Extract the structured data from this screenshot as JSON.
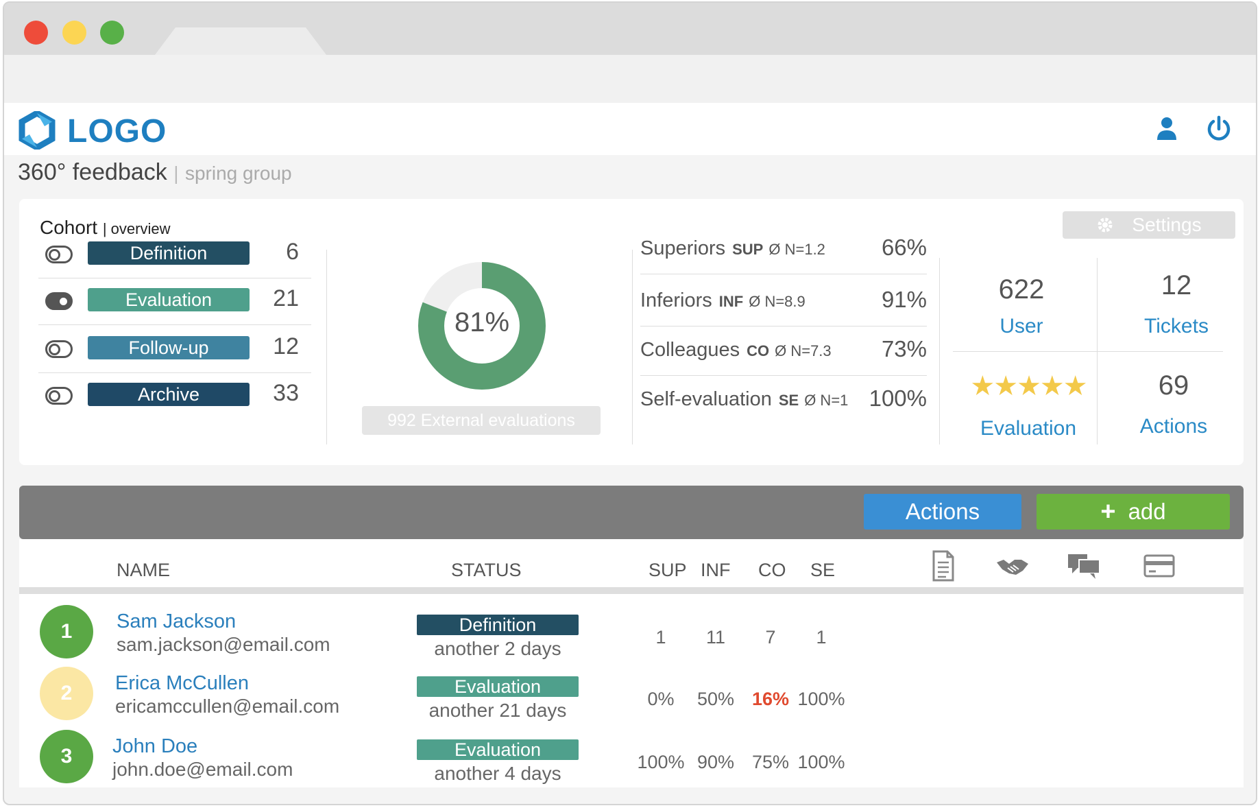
{
  "brand": {
    "logo_text": "LOGO",
    "color": "#1e7fc0"
  },
  "page": {
    "title": "360° feedback",
    "separator": "|",
    "group": "spring group"
  },
  "cohort": {
    "title": "Cohort",
    "subtitle": "overview",
    "settings_label": "Settings",
    "stages": [
      {
        "label": "Definition",
        "count": "6",
        "toggle": "off",
        "color": "#234f63"
      },
      {
        "label": "Evaluation",
        "count": "21",
        "toggle": "on",
        "color": "#4fa08c"
      },
      {
        "label": "Follow-up",
        "count": "12",
        "toggle": "off",
        "color": "#3f83a0"
      },
      {
        "label": "Archive",
        "count": "33",
        "toggle": "off",
        "color": "#1f4966"
      }
    ],
    "progress": {
      "label": "81%",
      "value": 0.81,
      "color": "#5a9e72"
    },
    "external_evaluations": "992 External evaluations",
    "groups": [
      {
        "name": "Superiors",
        "abbr": "SUP",
        "meta": "Ø  N=1.2",
        "pct": "66%"
      },
      {
        "name": "Inferiors",
        "abbr": "INF",
        "meta": "Ø  N=8.9",
        "pct": "91%"
      },
      {
        "name": "Colleagues",
        "abbr": "CO",
        "meta": "Ø  N=7.3",
        "pct": "73%"
      },
      {
        "name": "Self-evaluation",
        "abbr": "SE",
        "meta": "Ø  N=1",
        "pct": "100%"
      }
    ],
    "stats": {
      "user": {
        "value": "622",
        "label": "User"
      },
      "tickets": {
        "value": "12",
        "label": "Tickets"
      },
      "evaluation": {
        "stars": "★★★★★",
        "rating": 5,
        "label": "Evaluation"
      },
      "actions": {
        "value": "69",
        "label": "Actions"
      }
    }
  },
  "toolbar": {
    "actions_label": "Actions",
    "add_label": "add",
    "add_icon": "plus-icon"
  },
  "table": {
    "headers": {
      "name": "NAME",
      "status": "STATUS",
      "sup": "SUP",
      "inf": "INF",
      "co": "CO",
      "se": "SE"
    },
    "header_icons": [
      "document-icon",
      "handshake-icon",
      "chat-icon",
      "card-icon"
    ],
    "rows": [
      {
        "num": "1",
        "avatar_color": "#5aa845",
        "name": "Sam Jackson",
        "email": "sam.jackson@email.com",
        "status": "Definition",
        "status_color": "#234f63",
        "note": "another 2 days",
        "sup": "1",
        "inf": "11",
        "co": "7",
        "se": "1"
      },
      {
        "num": "2",
        "avatar_color": "#fbe7a4",
        "name": "Erica McCullen",
        "email": "ericamccullen@email.com",
        "status": "Evaluation",
        "status_color": "#4fa08c",
        "note": "another 21 days",
        "sup": "0%",
        "inf": "50%",
        "co": "16%",
        "se": "100%"
      },
      {
        "num": "3",
        "avatar_color": "#5aa845",
        "name": "John Doe",
        "email": "john.doe@email.com",
        "status": "Evaluation",
        "status_color": "#4fa08c",
        "note": "another 4 days",
        "sup": "100%",
        "inf": "90%",
        "co": "75%",
        "se": "100%"
      }
    ]
  }
}
